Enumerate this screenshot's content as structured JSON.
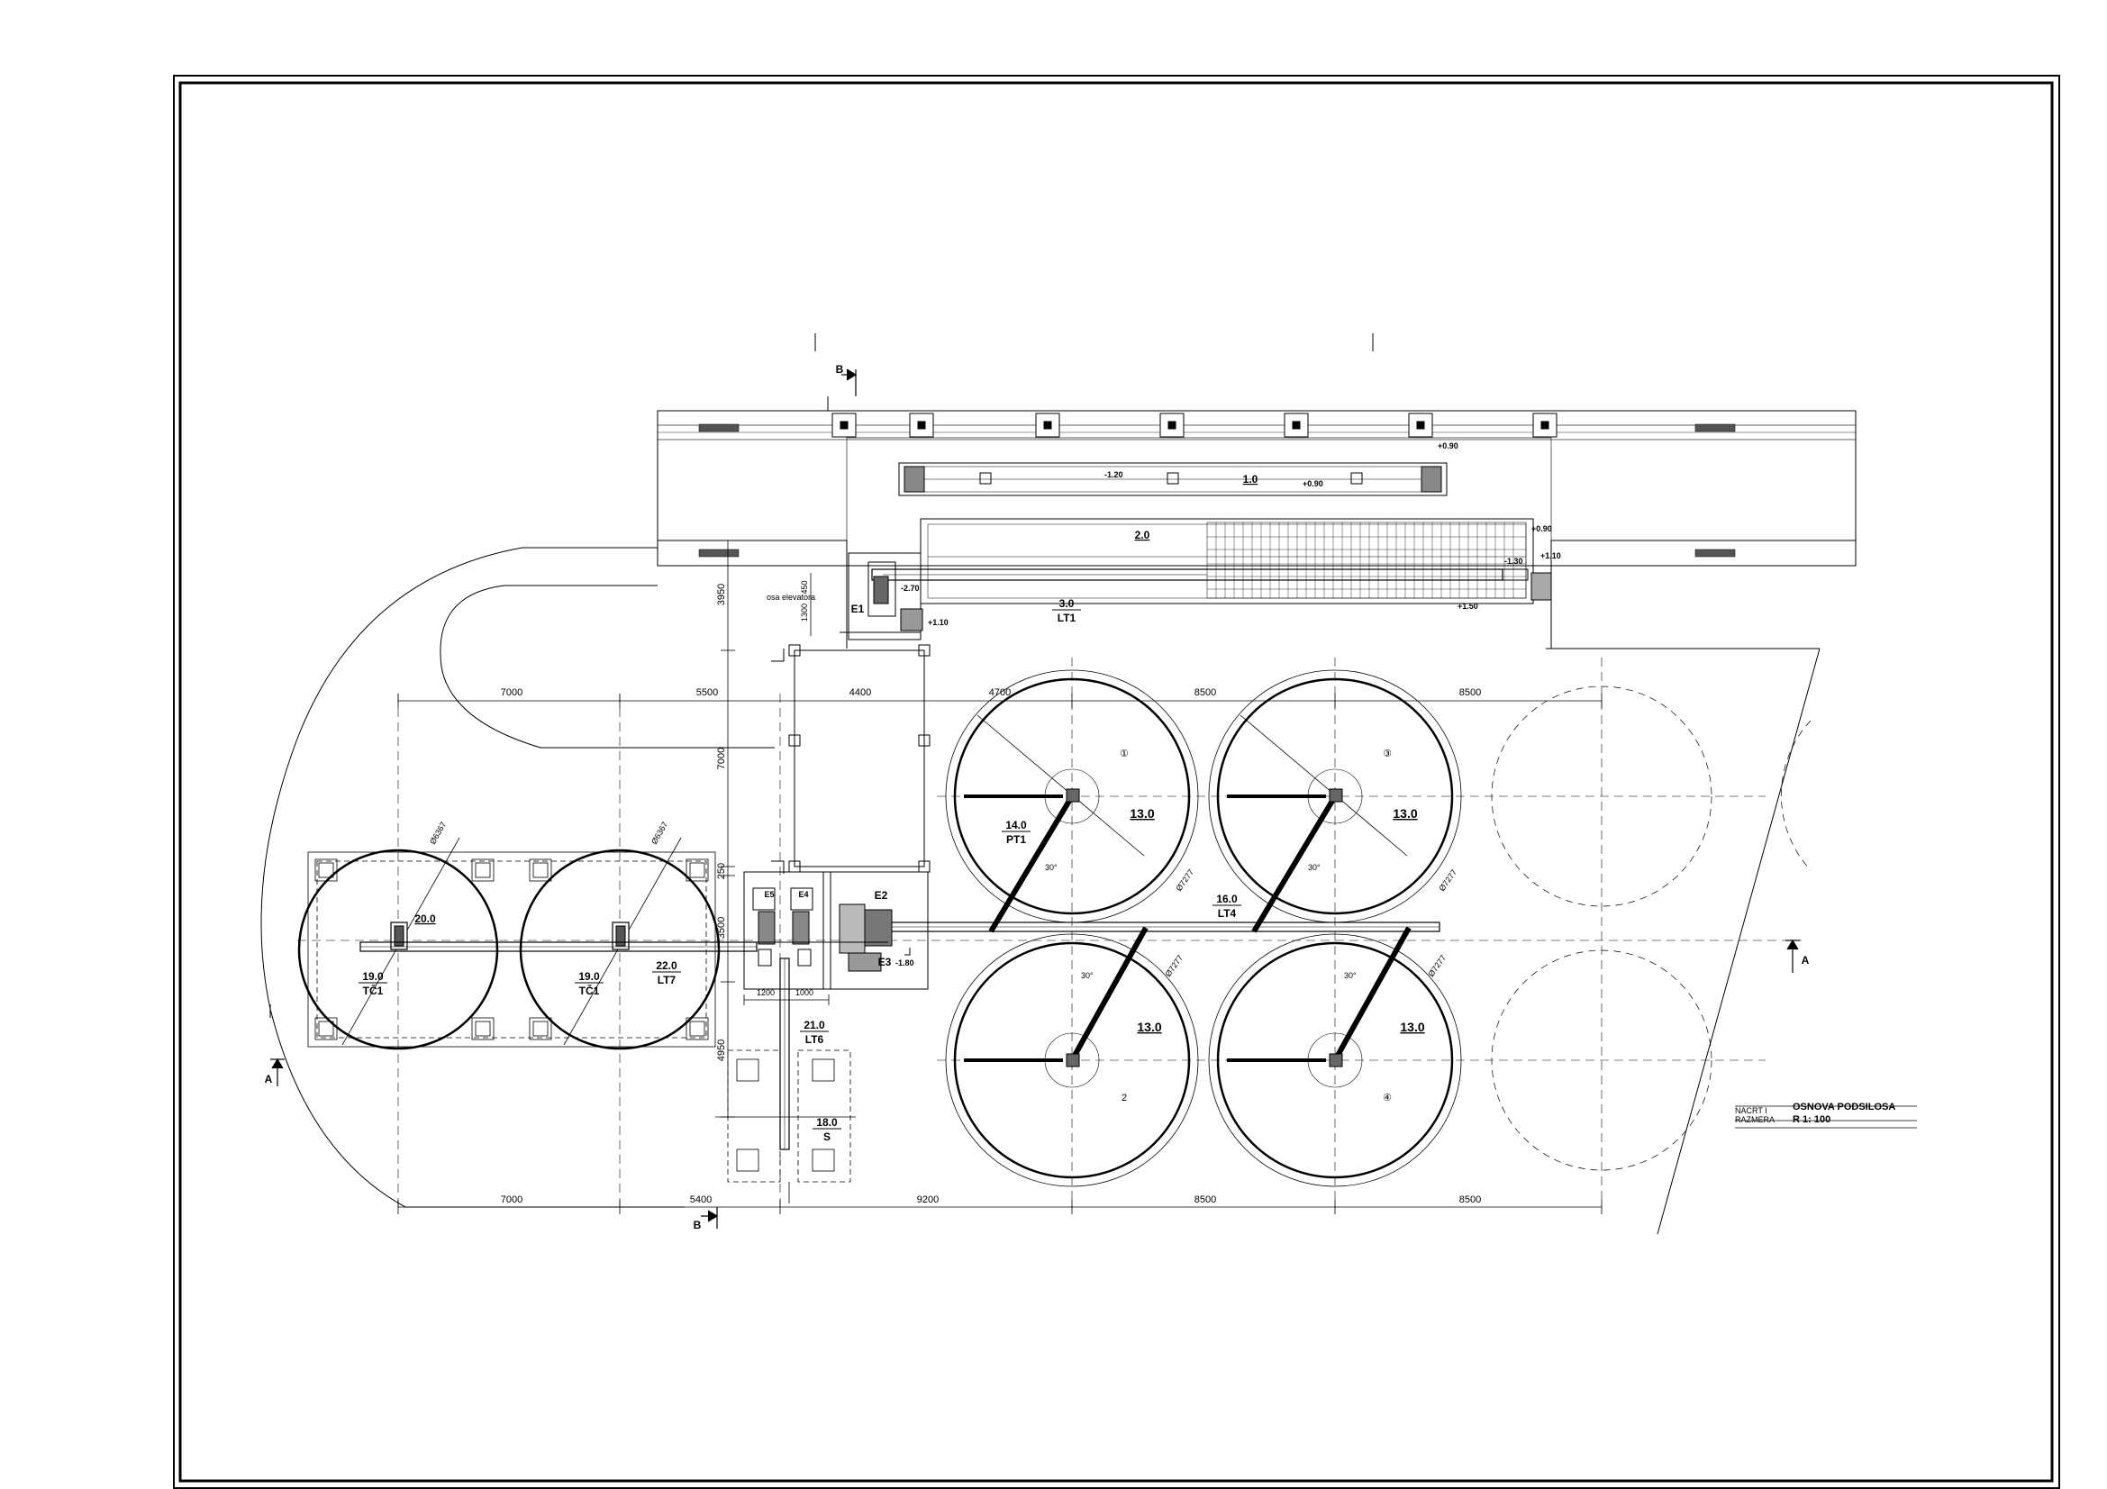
{
  "drawing": {
    "title": "OSNOVA PODSILOSA",
    "title_label_1": "NACRT I",
    "title_label_2": "RAZMERA",
    "scale": "R 1: 100"
  },
  "dimensions": {
    "top": [
      "7000",
      "5500",
      "4400",
      "4700",
      "8500",
      "8500"
    ],
    "bottom": [
      "7000",
      "5400",
      "9200",
      "8500",
      "8500"
    ],
    "vertical": [
      "3950",
      "7000",
      "250",
      "3500",
      "4950"
    ],
    "small": [
      "1200",
      "1000",
      "1300",
      "450"
    ]
  },
  "section_marks": {
    "b_top": "B",
    "b_bottom": "B",
    "a_left": "A",
    "a_right": "A"
  },
  "equipment_labels": {
    "tc1_a_top": "19.0",
    "tc1_a_bottom": "TČ1",
    "tc1_b_top": "19.0",
    "tc1_b_bottom": "TČ1",
    "tank_a_top": "20.0",
    "lt7_top": "22.0",
    "lt7_bottom": "LT7",
    "lt6_top": "21.0",
    "lt6_bottom": "LT6",
    "s_top": "18.0",
    "s_bottom": "S",
    "lt4_top": "16.0",
    "lt4_bottom": "LT4",
    "pt1_top": "14.0",
    "pt1_bottom": "PT1",
    "lt1_top": "3.0",
    "lt1_bottom": "LT1",
    "belt_2": "2.0",
    "belt_1": "1.0",
    "e1": "E1",
    "e2": "E2",
    "e3": "E3",
    "e4": "E4",
    "e5": "E5",
    "osa_elevatora": "osa elevatora"
  },
  "silo_labels": {
    "silo_1_number": "①",
    "silo_2_number": "2",
    "silo_3_number": "③",
    "silo_4_number": "④",
    "silo_1_value": "13.0",
    "silo_2_value": "13.0",
    "silo_3_value": "13.0",
    "silo_4_value": "13.0",
    "silo_diameter": "Ø7277",
    "tank_diameter": "Ø6367",
    "angle": "30°"
  },
  "elevations": {
    "e_090_a": "+0.90",
    "e_120": "-1.20",
    "e_090_b": "+0.90",
    "e_090_c": "+0.90",
    "e_130": "-1.30",
    "e_110_a": "+1.10",
    "e_150": "+1.50",
    "e_270": "-2.70",
    "e_110_b": "+1.10",
    "e_180": "-1.80"
  }
}
